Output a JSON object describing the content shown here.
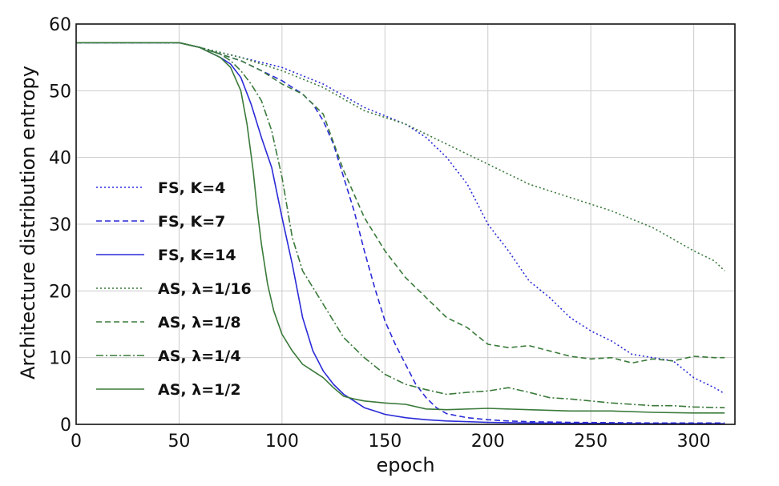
{
  "chart_data": {
    "type": "line",
    "title": "",
    "xlabel": "epoch",
    "ylabel": "Architecture distribution entropy",
    "xlim": [
      0,
      320
    ],
    "ylim": [
      0,
      60
    ],
    "xticks": [
      0,
      50,
      100,
      150,
      200,
      250,
      300
    ],
    "yticks": [
      0,
      10,
      20,
      30,
      40,
      50,
      60
    ],
    "grid": true,
    "legend_position": "left-center",
    "series": [
      {
        "name": "FS, K=4",
        "color": "#2a2ad8",
        "dash": "dotted",
        "x": [
          0,
          50,
          60,
          80,
          100,
          120,
          140,
          160,
          170,
          180,
          190,
          200,
          210,
          220,
          230,
          240,
          250,
          260,
          270,
          280,
          290,
          300,
          310,
          315
        ],
        "y": [
          57.2,
          57.2,
          56.5,
          55,
          53.5,
          51,
          47.5,
          45,
          43,
          40,
          36,
          30,
          26,
          21.5,
          19,
          16,
          14,
          12.5,
          10.5,
          10,
          9.5,
          7,
          5.5,
          4.6
        ]
      },
      {
        "name": "FS, K=7",
        "color": "#2a2ad8",
        "dash": "dashed",
        "x": [
          0,
          50,
          60,
          70,
          80,
          90,
          100,
          110,
          115,
          120,
          125,
          130,
          135,
          140,
          145,
          150,
          155,
          160,
          165,
          170,
          175,
          180,
          190,
          200,
          210,
          220,
          240,
          260,
          280,
          300,
          315
        ],
        "y": [
          57.2,
          57.2,
          56.5,
          55.5,
          54.5,
          53,
          51.5,
          49.5,
          48,
          45.5,
          42,
          37,
          32,
          26,
          20.5,
          15.5,
          12,
          9,
          6,
          4,
          2.5,
          1.6,
          1,
          0.7,
          0.5,
          0.4,
          0.3,
          0.25,
          0.2,
          0.2,
          0.2
        ]
      },
      {
        "name": "FS, K=14",
        "color": "#2a2ad8",
        "dash": "solid",
        "x": [
          0,
          50,
          60,
          70,
          75,
          80,
          85,
          90,
          95,
          100,
          105,
          110,
          115,
          120,
          125,
          130,
          135,
          140,
          145,
          150,
          160,
          170,
          180,
          200,
          220,
          250,
          280,
          315
        ],
        "y": [
          57.2,
          57.2,
          56.5,
          55,
          54,
          52,
          48,
          43,
          38.5,
          31,
          24,
          16,
          11,
          8,
          6,
          4.5,
          3.5,
          2.5,
          2,
          1.5,
          1,
          0.7,
          0.5,
          0.3,
          0.2,
          0.15,
          0.1,
          0.1
        ]
      },
      {
        "name": "AS, λ=1/16",
        "color": "#3a7a3a",
        "dash": "dotted",
        "x": [
          0,
          50,
          60,
          80,
          100,
          120,
          140,
          160,
          180,
          200,
          220,
          240,
          260,
          280,
          300,
          310,
          315
        ],
        "y": [
          57.2,
          57.2,
          56.5,
          55,
          53,
          50.5,
          47,
          45,
          42,
          39,
          36,
          34,
          32,
          29.5,
          26,
          24.5,
          23
        ]
      },
      {
        "name": "AS, λ=1/8",
        "color": "#3a7a3a",
        "dash": "dashed",
        "x": [
          0,
          50,
          60,
          70,
          80,
          90,
          100,
          110,
          120,
          130,
          140,
          150,
          160,
          170,
          180,
          190,
          200,
          210,
          220,
          230,
          240,
          250,
          260,
          270,
          280,
          290,
          300,
          310,
          315
        ],
        "y": [
          57.2,
          57.2,
          56.5,
          55.5,
          54.5,
          53,
          51,
          49.5,
          46.5,
          38,
          31,
          26,
          22,
          19,
          16,
          14.5,
          12,
          11.5,
          11.8,
          11,
          10.2,
          9.8,
          10,
          9.2,
          9.8,
          9.5,
          10.2,
          10,
          10
        ]
      },
      {
        "name": "AS, λ=1/4",
        "color": "#3a7a3a",
        "dash": "dashdot",
        "x": [
          0,
          50,
          60,
          70,
          75,
          80,
          85,
          90,
          95,
          100,
          105,
          110,
          120,
          130,
          140,
          150,
          160,
          170,
          180,
          190,
          200,
          210,
          220,
          230,
          240,
          250,
          260,
          270,
          280,
          290,
          300,
          315
        ],
        "y": [
          57.2,
          57.2,
          56.5,
          55.5,
          54.5,
          53,
          51,
          48.5,
          44,
          37,
          28,
          23,
          18,
          13,
          10,
          7.5,
          6,
          5.2,
          4.5,
          4.8,
          5,
          5.5,
          4.8,
          4,
          3.8,
          3.5,
          3.2,
          3,
          2.8,
          2.8,
          2.6,
          2.5
        ]
      },
      {
        "name": "AS, λ=1/2",
        "color": "#3a7a3a",
        "dash": "solid",
        "x": [
          0,
          50,
          60,
          70,
          75,
          80,
          83,
          86,
          88,
          90,
          93,
          96,
          100,
          105,
          110,
          115,
          120,
          125,
          130,
          135,
          140,
          150,
          160,
          170,
          180,
          200,
          220,
          240,
          260,
          280,
          300,
          315
        ],
        "y": [
          57.2,
          57.2,
          56.5,
          55,
          53.5,
          50,
          45,
          38,
          32,
          27,
          21,
          17,
          13.5,
          11,
          9,
          8,
          7,
          5.5,
          4.2,
          3.8,
          3.5,
          3.2,
          3.0,
          2.3,
          2.2,
          2.4,
          2.2,
          2,
          2,
          1.8,
          1.7,
          1.7
        ]
      }
    ]
  }
}
